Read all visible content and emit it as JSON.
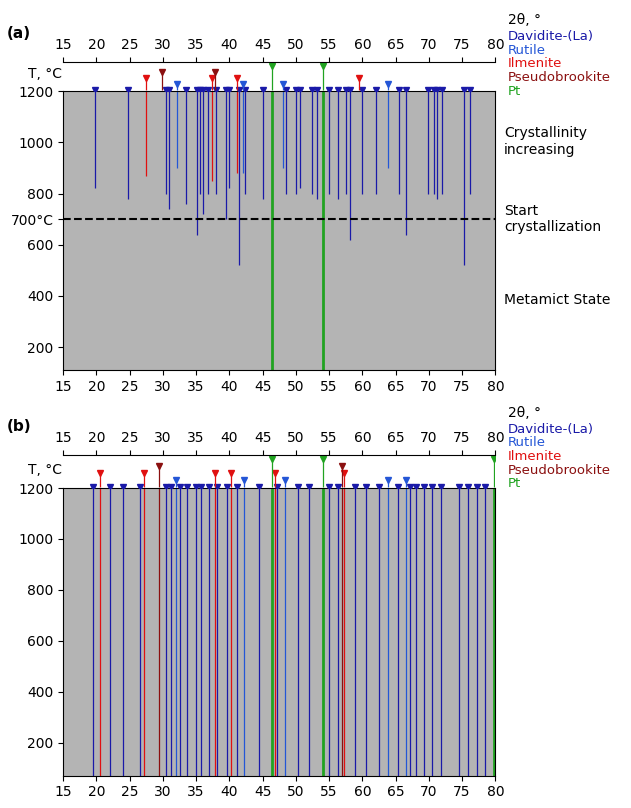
{
  "chart_data": [
    {
      "type": "heatmap",
      "panel": "(a)",
      "x_label": "2θ, °",
      "y_label": "T, °C",
      "xlim": [
        15,
        80
      ],
      "xticks": [
        15,
        20,
        25,
        30,
        35,
        40,
        45,
        50,
        55,
        60,
        65,
        70,
        75,
        80
      ],
      "ylim": [
        110,
        1200
      ],
      "yticks": [
        200,
        400,
        600,
        {
          "value": 700,
          "label": "700°C"
        },
        800,
        1000,
        1200
      ],
      "series": [
        {
          "name": "Davidite-(La)",
          "color": "#1a1aa8",
          "x": [
            19.8,
            24.8,
            30.5,
            31.0,
            33.5,
            35.2,
            35.6,
            36.0,
            36.8,
            38.0,
            39.5,
            40.0,
            41.5,
            42.3,
            45.0,
            48.5,
            50.0,
            50.7,
            52.5,
            53.2,
            55.0,
            56.3,
            57.5,
            58.2,
            60.0,
            62.0,
            65.5,
            66.5,
            69.8,
            70.8,
            71.2,
            72.0,
            75.3,
            76.2
          ],
          "t_from": [
            820,
            780,
            800,
            740,
            760,
            640,
            800,
            720,
            800,
            800,
            700,
            820,
            520,
            800,
            780,
            800,
            800,
            820,
            800,
            780,
            800,
            780,
            800,
            620,
            800,
            800,
            800,
            640,
            800,
            800,
            780,
            800,
            520,
            800
          ]
        },
        {
          "name": "Rutile",
          "color": "#2456d6",
          "x": [
            32.1,
            42.0,
            48.0,
            63.9
          ],
          "t_from": [
            900,
            880,
            900,
            900
          ]
        },
        {
          "name": "Ilmenite",
          "color": "#e01010",
          "x": [
            27.4,
            37.4,
            41.2,
            59.5
          ],
          "t_from": [
            870,
            850,
            880,
            1200
          ]
        },
        {
          "name": "Pseudobrookite",
          "color": "#8b1010",
          "x": [
            29.9,
            37.9
          ],
          "t_from": [
            1200,
            1200
          ]
        },
        {
          "name": "Pt",
          "color": "#21a321",
          "x": [
            46.4,
            54.1
          ],
          "t_from": [
            110,
            110
          ]
        }
      ],
      "reference_line": {
        "y": 700,
        "line_style": "dashed",
        "label": "Start crystallization"
      },
      "annotations": [
        {
          "text": "Crystallinity increasing"
        },
        {
          "text": "Metamict State"
        }
      ]
    },
    {
      "type": "heatmap",
      "panel": "(b)",
      "x_label": "2θ, °",
      "y_label": "T, °C",
      "xlim": [
        15,
        80
      ],
      "xticks": [
        15,
        20,
        25,
        30,
        35,
        40,
        45,
        50,
        55,
        60,
        65,
        70,
        75,
        80
      ],
      "ylim": [
        70,
        1200
      ],
      "yticks": [
        200,
        400,
        600,
        800,
        1000,
        1200
      ],
      "series": [
        {
          "name": "Davidite-(La)",
          "color": "#1a1aa8",
          "x": [
            19.5,
            22.1,
            24.0,
            26.5,
            30.4,
            31.2,
            32.6,
            33.7,
            35.0,
            35.8,
            37.0,
            38.2,
            39.6,
            41.2,
            44.5,
            47.1,
            50.3,
            52.0,
            55.0,
            56.3,
            58.9,
            60.5,
            62.5,
            65.4,
            67.1,
            68.0,
            69.3,
            70.5,
            71.8,
            74.6,
            75.9,
            77.2,
            78.4
          ],
          "t_from": [
            70,
            70,
            70,
            70,
            70,
            70,
            70,
            70,
            70,
            70,
            70,
            70,
            70,
            70,
            70,
            70,
            70,
            70,
            70,
            70,
            70,
            70,
            70,
            70,
            70,
            70,
            70,
            70,
            70,
            70,
            70,
            70,
            70
          ]
        },
        {
          "name": "Rutile",
          "color": "#2456d6",
          "x": [
            32.0,
            42.2,
            48.3,
            63.8,
            66.5
          ],
          "t_from": [
            70,
            70,
            70,
            70,
            70
          ]
        },
        {
          "name": "Ilmenite",
          "color": "#e01010",
          "x": [
            20.6,
            27.2,
            37.8,
            40.2,
            46.9,
            57.3
          ],
          "t_from": [
            70,
            70,
            70,
            70,
            70,
            70
          ]
        },
        {
          "name": "Pseudobrookite",
          "color": "#8b1010",
          "x": [
            29.4,
            57.0
          ],
          "t_from": [
            70,
            70
          ]
        },
        {
          "name": "Pt",
          "color": "#21a321",
          "x": [
            46.4,
            54.1,
            79.8
          ],
          "t_from": [
            70,
            70,
            70
          ]
        }
      ]
    }
  ]
}
